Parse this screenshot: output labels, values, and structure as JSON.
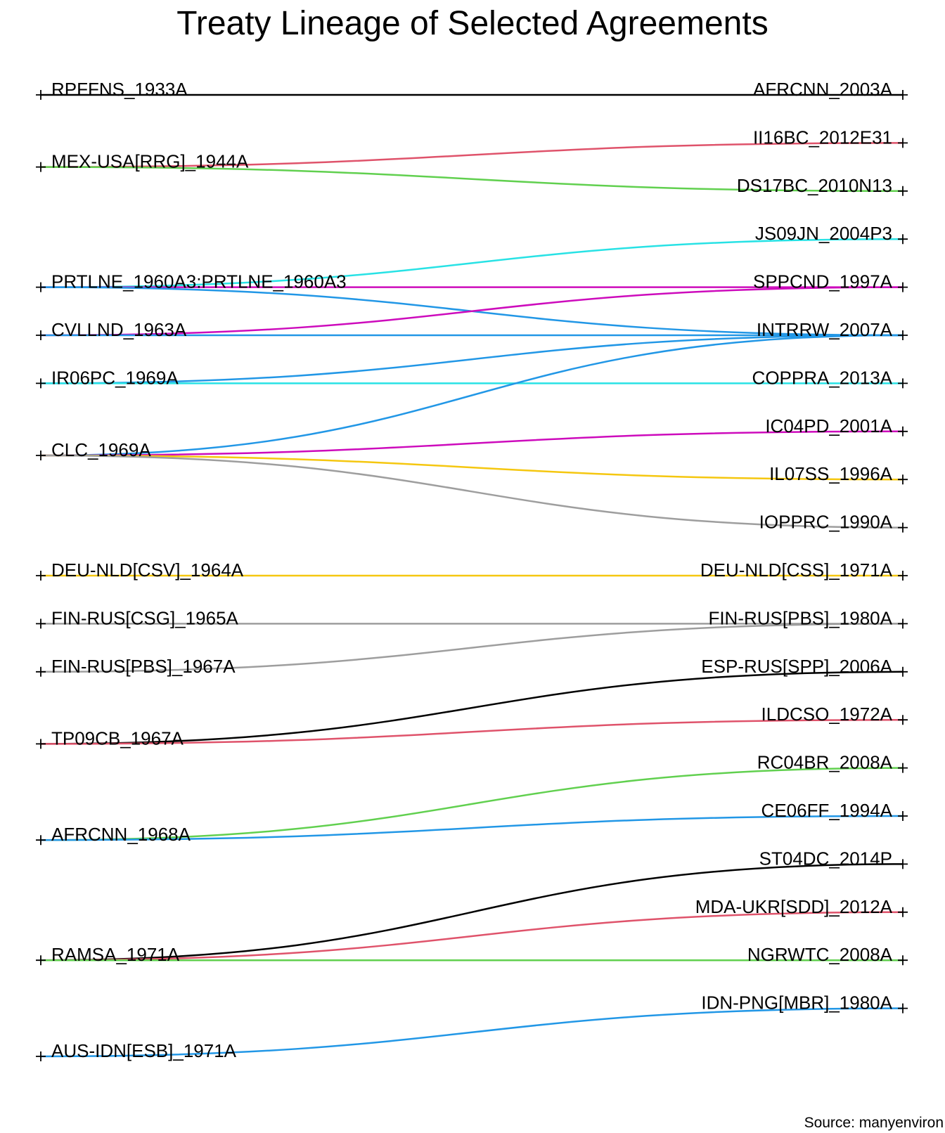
{
  "title": "Treaty Lineage of Selected Agreements",
  "caption": "Source: manyenviron",
  "chart_data": {
    "type": "diagram",
    "left_nodes": [
      "RPFFNS_1933A",
      "MEX-USA[RRG]_1944A",
      "PRTLNE_1960A3:PRTLNE_1960A3",
      "CVLLND_1963A",
      "IR06PC_1969A",
      "CLC_1969A",
      "DEU-NLD[CSV]_1964A",
      "FIN-RUS[CSG]_1965A",
      "FIN-RUS[PBS]_1967A",
      "TP09CB_1967A",
      "AFRCNN_1968A",
      "RAMSA_1971A",
      "AUS-IDN[ESB]_1971A"
    ],
    "right_nodes": [
      "AFRCNN_2003A",
      "II16BC_2012E31",
      "DS17BC_2010N13",
      "JS09JN_2004P3",
      "SPPCND_1997A",
      "INTRRW_2007A",
      "COPPRA_2013A",
      "IC04PD_2001A",
      "IL07SS_1996A",
      "IOPPRC_1990A",
      "DEU-NLD[CSS]_1971A",
      "FIN-RUS[PBS]_1980A",
      "ESP-RUS[SPP]_2006A",
      "ILDCSO_1972A",
      "RC04BR_2008A",
      "CE06FF_1994A",
      "ST04DC_2014P",
      "MDA-UKR[SDD]_2012A",
      "NGRWTC_2008A",
      "IDN-PNG[MBR]_1980A"
    ],
    "edges": [
      {
        "from": "RPFFNS_1933A",
        "to": "AFRCNN_2003A",
        "color": "#000000"
      },
      {
        "from": "MEX-USA[RRG]_1944A",
        "to": "II16BC_2012E31",
        "color": "#DF536B"
      },
      {
        "from": "MEX-USA[RRG]_1944A",
        "to": "DS17BC_2010N13",
        "color": "#61D04F"
      },
      {
        "from": "PRTLNE_1960A3:PRTLNE_1960A3",
        "to": "JS09JN_2004P3",
        "color": "#28E2E5"
      },
      {
        "from": "PRTLNE_1960A3:PRTLNE_1960A3",
        "to": "SPPCND_1997A",
        "color": "#CD0BBC"
      },
      {
        "from": "PRTLNE_1960A3:PRTLNE_1960A3",
        "to": "INTRRW_2007A",
        "color": "#2297E6"
      },
      {
        "from": "CVLLND_1963A",
        "to": "SPPCND_1997A",
        "color": "#CD0BBC"
      },
      {
        "from": "CVLLND_1963A",
        "to": "INTRRW_2007A",
        "color": "#2297E6"
      },
      {
        "from": "IR06PC_1969A",
        "to": "INTRRW_2007A",
        "color": "#2297E6"
      },
      {
        "from": "IR06PC_1969A",
        "to": "COPPRA_2013A",
        "color": "#28E2E5"
      },
      {
        "from": "CLC_1969A",
        "to": "INTRRW_2007A",
        "color": "#2297E6"
      },
      {
        "from": "CLC_1969A",
        "to": "IC04PD_2001A",
        "color": "#CD0BBC"
      },
      {
        "from": "CLC_1969A",
        "to": "IL07SS_1996A",
        "color": "#F5C710"
      },
      {
        "from": "CLC_1969A",
        "to": "IOPPRC_1990A",
        "color": "#9E9E9E"
      },
      {
        "from": "DEU-NLD[CSV]_1964A",
        "to": "DEU-NLD[CSS]_1971A",
        "color": "#F5C710"
      },
      {
        "from": "FIN-RUS[CSG]_1965A",
        "to": "FIN-RUS[PBS]_1980A",
        "color": "#9E9E9E"
      },
      {
        "from": "FIN-RUS[PBS]_1967A",
        "to": "FIN-RUS[PBS]_1980A",
        "color": "#9E9E9E"
      },
      {
        "from": "TP09CB_1967A",
        "to": "ESP-RUS[SPP]_2006A",
        "color": "#000000"
      },
      {
        "from": "TP09CB_1967A",
        "to": "ILDCSO_1972A",
        "color": "#DF536B"
      },
      {
        "from": "AFRCNN_1968A",
        "to": "RC04BR_2008A",
        "color": "#61D04F"
      },
      {
        "from": "AFRCNN_1968A",
        "to": "CE06FF_1994A",
        "color": "#2297E6"
      },
      {
        "from": "RAMSA_1971A",
        "to": "ST04DC_2014P",
        "color": "#000000"
      },
      {
        "from": "RAMSA_1971A",
        "to": "MDA-UKR[SDD]_2012A",
        "color": "#DF536B"
      },
      {
        "from": "RAMSA_1971A",
        "to": "NGRWTC_2008A",
        "color": "#61D04F"
      },
      {
        "from": "AUS-IDN[ESB]_1971A",
        "to": "IDN-PNG[MBR]_1980A",
        "color": "#2297E6"
      }
    ]
  }
}
